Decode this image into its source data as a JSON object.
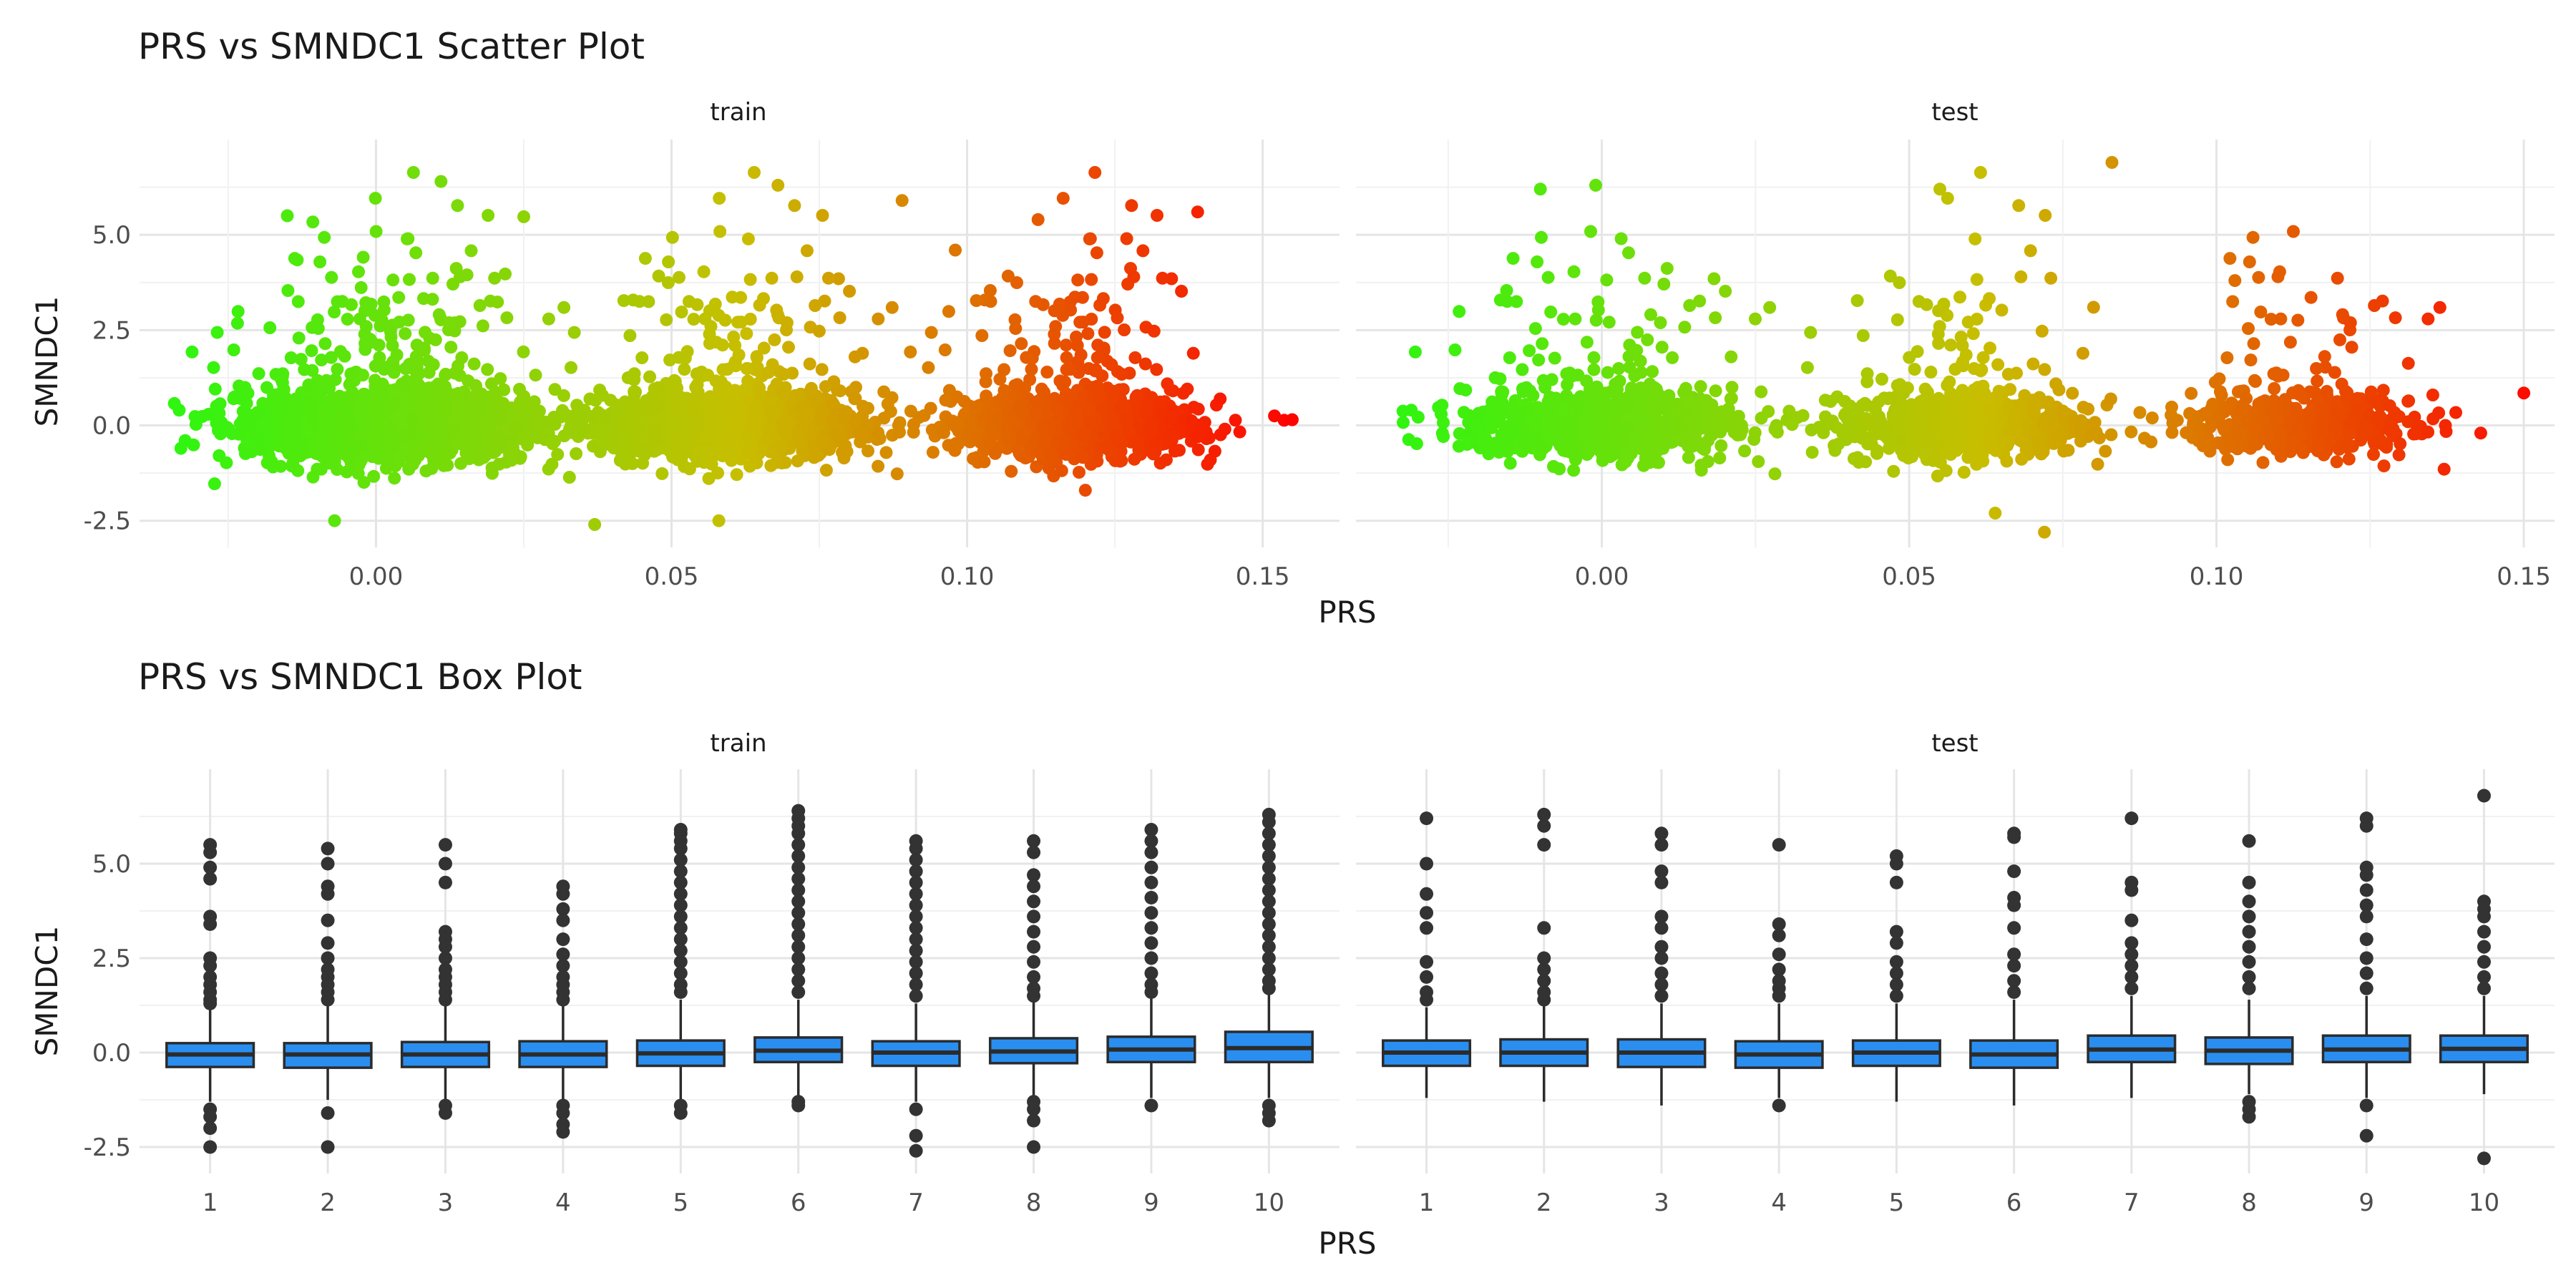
{
  "colors": {
    "low": "#30f510",
    "high": "#ff0000",
    "box_fill": "#2a8ef0",
    "box_stroke": "#2b2b2b",
    "outlier": "#333333"
  },
  "chart_data": [
    {
      "type": "scatter",
      "title": "PRS vs SMNDC1 Scatter Plot",
      "xlabel": "PRS",
      "ylabel": "SMNDC1",
      "color_scale": {
        "variable": "PRS",
        "low_color": "#30f510",
        "high_color": "#ff0000",
        "domain": [
          -0.033,
          0.157
        ]
      },
      "facets": [
        {
          "name": "train",
          "xlim": [
            -0.04,
            0.163
          ],
          "ylim": [
            -3.2,
            7.5
          ],
          "xticks": [
            "0.00",
            "0.05",
            "0.10",
            "0.15"
          ],
          "xtick_values": [
            0,
            0.05,
            0.1,
            0.15
          ],
          "clusters": [
            {
              "x_center": 0.002,
              "x_sd": 0.012,
              "y_sd": 0.45,
              "n": 1900
            },
            {
              "x_center": 0.06,
              "x_sd": 0.011,
              "y_sd": 0.42,
              "n": 1500
            },
            {
              "x_center": 0.118,
              "x_sd": 0.01,
              "y_sd": 0.4,
              "n": 1200
            }
          ],
          "notable_points": [
            {
              "x": 0.155,
              "y": 0.15
            },
            {
              "x": 0.152,
              "y": 0.25
            },
            {
              "x": 0.011,
              "y": 6.4
            },
            {
              "x": 0.068,
              "y": 6.3
            },
            {
              "x": 0.139,
              "y": 5.6
            },
            {
              "x": 0.112,
              "y": 5.4
            },
            {
              "x": -0.015,
              "y": 5.5
            },
            {
              "x": 0.037,
              "y": -2.6
            },
            {
              "x": 0.058,
              "y": -2.5
            },
            {
              "x": -0.007,
              "y": -2.5
            },
            {
              "x": 0.12,
              "y": -1.7
            },
            {
              "x": -0.033,
              "y": -0.6
            },
            {
              "x": 0.127,
              "y": 4.9
            },
            {
              "x": 0.089,
              "y": 5.9
            },
            {
              "x": 0.098,
              "y": 4.6
            }
          ]
        },
        {
          "name": "test",
          "xlim": [
            -0.04,
            0.155
          ],
          "ylim": [
            -3.2,
            7.5
          ],
          "xticks": [
            "0.00",
            "0.05",
            "0.10",
            "0.15"
          ],
          "xtick_values": [
            0,
            0.05,
            0.1,
            0.15
          ],
          "clusters": [
            {
              "x_center": 0.0,
              "x_sd": 0.011,
              "y_sd": 0.42,
              "n": 900
            },
            {
              "x_center": 0.058,
              "x_sd": 0.01,
              "y_sd": 0.4,
              "n": 750
            },
            {
              "x_center": 0.114,
              "x_sd": 0.009,
              "y_sd": 0.38,
              "n": 550
            }
          ],
          "notable_points": [
            {
              "x": 0.083,
              "y": 6.9
            },
            {
              "x": -0.001,
              "y": 6.3
            },
            {
              "x": -0.01,
              "y": 6.2
            },
            {
              "x": 0.055,
              "y": 6.2
            },
            {
              "x": 0.15,
              "y": 0.85
            },
            {
              "x": 0.072,
              "y": -2.8
            },
            {
              "x": 0.143,
              "y": -0.2
            },
            {
              "x": 0.11,
              "y": 3.9
            },
            {
              "x": 0.103,
              "y": 3.8
            },
            {
              "x": -0.031,
              "y": 0.4
            },
            {
              "x": 0.064,
              "y": -2.3
            },
            {
              "x": 0.08,
              "y": 3.1
            }
          ]
        }
      ],
      "yticks": [
        "-2.5",
        "0.0",
        "2.5",
        "5.0"
      ],
      "ytick_values": [
        -2.5,
        0,
        2.5,
        5
      ]
    },
    {
      "type": "box",
      "title": "PRS vs SMNDC1 Box Plot",
      "xlabel": "PRS",
      "ylabel": "SMNDC1",
      "categories": [
        "1",
        "2",
        "3",
        "4",
        "5",
        "6",
        "7",
        "8",
        "9",
        "10"
      ],
      "yticks": [
        "-2.5",
        "0.0",
        "2.5",
        "5.0"
      ],
      "ytick_values": [
        -2.5,
        0,
        2.5,
        5
      ],
      "facets": [
        {
          "name": "train",
          "ylim": [
            -3.2,
            7.5
          ],
          "boxes": [
            {
              "q1": -0.38,
              "median": -0.05,
              "q3": 0.25,
              "whisker_low": -1.3,
              "whisker_high": 1.2,
              "outliers": [
                5.5,
                5.3,
                4.9,
                4.6,
                3.6,
                3.4,
                2.5,
                2.3,
                2.0,
                1.8,
                1.6,
                1.4,
                1.3,
                -1.5,
                -1.7,
                -2.0,
                -2.5
              ]
            },
            {
              "q1": -0.4,
              "median": -0.05,
              "q3": 0.25,
              "whisker_low": -1.25,
              "whisker_high": 1.25,
              "outliers": [
                5.4,
                5.0,
                4.4,
                4.2,
                3.5,
                2.9,
                2.5,
                2.2,
                2.0,
                1.8,
                1.6,
                1.4,
                -1.6,
                -2.5
              ]
            },
            {
              "q1": -0.38,
              "median": -0.05,
              "q3": 0.28,
              "whisker_low": -1.3,
              "whisker_high": 1.3,
              "outliers": [
                5.5,
                5.0,
                4.5,
                3.2,
                3.0,
                2.8,
                2.5,
                2.2,
                2.0,
                1.8,
                1.6,
                1.4,
                -1.4,
                -1.6
              ]
            },
            {
              "q1": -0.38,
              "median": -0.05,
              "q3": 0.3,
              "whisker_low": -1.3,
              "whisker_high": 1.3,
              "outliers": [
                4.4,
                4.2,
                3.8,
                3.5,
                3.0,
                2.6,
                2.3,
                2.0,
                1.8,
                1.6,
                1.4,
                -1.4,
                -1.6,
                -1.9,
                -2.1
              ]
            },
            {
              "q1": -0.35,
              "median": -0.02,
              "q3": 0.32,
              "whisker_low": -1.3,
              "whisker_high": 1.4,
              "outliers": [
                5.9,
                5.8,
                5.6,
                5.4,
                5.1,
                4.8,
                4.5,
                4.2,
                3.9,
                3.6,
                3.3,
                3.0,
                2.7,
                2.4,
                2.1,
                1.8,
                1.6,
                -1.4,
                -1.6
              ]
            },
            {
              "q1": -0.25,
              "median": 0.05,
              "q3": 0.4,
              "whisker_low": -1.2,
              "whisker_high": 1.4,
              "outliers": [
                6.4,
                6.2,
                6.0,
                5.8,
                5.5,
                5.2,
                4.9,
                4.6,
                4.3,
                4.0,
                3.7,
                3.4,
                3.1,
                2.8,
                2.5,
                2.2,
                1.9,
                1.6,
                -1.3,
                -1.4
              ]
            },
            {
              "q1": -0.35,
              "median": 0.0,
              "q3": 0.3,
              "whisker_low": -1.3,
              "whisker_high": 1.3,
              "outliers": [
                5.6,
                5.4,
                5.1,
                4.8,
                4.5,
                4.2,
                3.9,
                3.6,
                3.3,
                3.0,
                2.7,
                2.4,
                2.1,
                1.8,
                1.5,
                -1.5,
                -2.2,
                -2.6
              ]
            },
            {
              "q1": -0.28,
              "median": 0.03,
              "q3": 0.38,
              "whisker_low": -1.2,
              "whisker_high": 1.4,
              "outliers": [
                5.6,
                5.3,
                4.7,
                4.4,
                4.0,
                3.6,
                3.2,
                2.8,
                2.4,
                2.0,
                1.7,
                1.5,
                -1.3,
                -1.5,
                -1.8,
                -2.5
              ]
            },
            {
              "q1": -0.25,
              "median": 0.08,
              "q3": 0.42,
              "whisker_low": -1.2,
              "whisker_high": 1.5,
              "outliers": [
                5.9,
                5.6,
                5.3,
                4.9,
                4.5,
                4.1,
                3.7,
                3.3,
                2.9,
                2.5,
                2.1,
                1.8,
                1.6,
                -1.4
              ]
            },
            {
              "q1": -0.25,
              "median": 0.12,
              "q3": 0.55,
              "whisker_low": -1.2,
              "whisker_high": 1.6,
              "outliers": [
                6.3,
                6.1,
                5.8,
                5.5,
                5.2,
                4.9,
                4.6,
                4.3,
                4.0,
                3.7,
                3.4,
                3.1,
                2.8,
                2.5,
                2.2,
                1.9,
                1.7,
                -1.4,
                -1.6,
                -1.8
              ]
            }
          ]
        },
        {
          "name": "test",
          "ylim": [
            -3.2,
            7.5
          ],
          "boxes": [
            {
              "q1": -0.35,
              "median": 0.0,
              "q3": 0.32,
              "whisker_low": -1.2,
              "whisker_high": 1.2,
              "outliers": [
                6.2,
                5.0,
                4.2,
                3.7,
                3.3,
                2.4,
                2.0,
                1.6,
                1.4
              ]
            },
            {
              "q1": -0.35,
              "median": 0.0,
              "q3": 0.35,
              "whisker_low": -1.3,
              "whisker_high": 1.3,
              "outliers": [
                6.3,
                6.0,
                5.5,
                3.3,
                2.5,
                2.2,
                1.9,
                1.6,
                1.4
              ]
            },
            {
              "q1": -0.38,
              "median": 0.0,
              "q3": 0.35,
              "whisker_low": -1.4,
              "whisker_high": 1.3,
              "outliers": [
                5.8,
                5.5,
                4.8,
                4.5,
                3.6,
                3.3,
                2.8,
                2.5,
                2.1,
                1.8,
                1.5
              ]
            },
            {
              "q1": -0.4,
              "median": -0.05,
              "q3": 0.3,
              "whisker_low": -1.2,
              "whisker_high": 1.3,
              "outliers": [
                5.5,
                3.4,
                3.1,
                2.6,
                2.2,
                1.9,
                1.7,
                1.5,
                -1.4
              ]
            },
            {
              "q1": -0.35,
              "median": 0.0,
              "q3": 0.32,
              "whisker_low": -1.3,
              "whisker_high": 1.3,
              "outliers": [
                5.2,
                5.0,
                4.5,
                3.2,
                2.9,
                2.4,
                2.1,
                1.8,
                1.5
              ]
            },
            {
              "q1": -0.4,
              "median": -0.05,
              "q3": 0.32,
              "whisker_low": -1.4,
              "whisker_high": 1.4,
              "outliers": [
                5.8,
                5.7,
                4.8,
                4.1,
                3.9,
                3.3,
                2.6,
                2.3,
                1.9,
                1.6
              ]
            },
            {
              "q1": -0.25,
              "median": 0.08,
              "q3": 0.45,
              "whisker_low": -1.2,
              "whisker_high": 1.5,
              "outliers": [
                6.2,
                4.5,
                4.3,
                3.5,
                2.9,
                2.6,
                2.3,
                2.0,
                1.7
              ]
            },
            {
              "q1": -0.3,
              "median": 0.05,
              "q3": 0.4,
              "whisker_low": -1.1,
              "whisker_high": 1.4,
              "outliers": [
                5.6,
                4.5,
                4.0,
                3.6,
                3.2,
                2.8,
                2.4,
                2.0,
                1.7,
                -1.3,
                -1.5,
                -1.7
              ]
            },
            {
              "q1": -0.25,
              "median": 0.08,
              "q3": 0.45,
              "whisker_low": -1.2,
              "whisker_high": 1.5,
              "outliers": [
                6.2,
                6.0,
                4.9,
                4.7,
                4.3,
                3.9,
                3.6,
                3.0,
                2.5,
                2.1,
                1.7,
                -1.4,
                -2.2
              ]
            },
            {
              "q1": -0.25,
              "median": 0.1,
              "q3": 0.45,
              "whisker_low": -1.1,
              "whisker_high": 1.5,
              "outliers": [
                6.8,
                4.0,
                3.8,
                3.6,
                3.2,
                2.8,
                2.4,
                2.0,
                1.7,
                -2.8
              ]
            }
          ]
        }
      ]
    }
  ]
}
